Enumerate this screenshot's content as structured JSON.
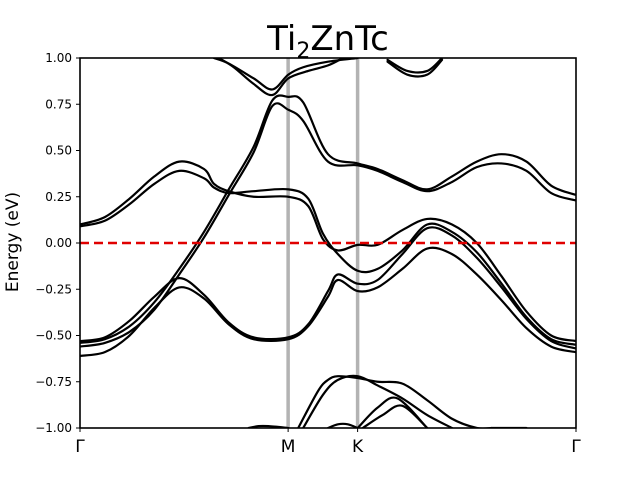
{
  "chart_data": {
    "type": "line",
    "title": {
      "main": "Ti",
      "sub": "2",
      "rest": "ZnTc"
    },
    "ylabel": "Energy (eV)",
    "xlabel": "",
    "ylim": [
      -1.0,
      1.0
    ],
    "y_ticks": [
      -1.0,
      -0.75,
      -0.5,
      -0.25,
      0.0,
      0.25,
      0.5,
      0.75,
      1.0
    ],
    "y_tick_labels": [
      "−1.00",
      "−0.75",
      "−0.50",
      "−0.25",
      "0.00",
      "0.25",
      "0.50",
      "0.75",
      "1.00"
    ],
    "xlim": [
      0,
      1
    ],
    "high_symmetry_points": [
      {
        "label": "Γ",
        "x": 0.0
      },
      {
        "label": "M",
        "x": 0.4196
      },
      {
        "label": "K",
        "x": 0.5597
      },
      {
        "label": "Γ",
        "x": 1.0
      }
    ],
    "vertical_line_color": "#b3b3b3",
    "band_color": "#000000",
    "fermi_level": {
      "y": 0.0,
      "color": "#e00000",
      "style": "dashed"
    },
    "grid": false,
    "legend": "none",
    "series": [
      {
        "x": [
          0,
          0.05,
          0.1,
          0.15,
          0.2,
          0.25,
          0.3,
          0.35,
          0.3877,
          0.42,
          0.45,
          0.5,
          0.5597,
          0.6,
          0.65,
          0.7,
          0.75,
          0.8,
          0.85,
          0.9,
          0.95,
          1.0
        ],
        "y": [
          -0.54,
          -0.52,
          -0.45,
          -0.32,
          -0.14,
          0.06,
          0.29,
          0.52,
          0.77,
          0.79,
          0.76,
          0.48,
          0.43,
          0.4,
          0.34,
          0.29,
          0.36,
          0.44,
          0.48,
          0.44,
          0.31,
          0.26
        ]
      },
      {
        "x": [
          0,
          0.05,
          0.1,
          0.15,
          0.2,
          0.25,
          0.3,
          0.35,
          0.3877,
          0.42,
          0.45,
          0.5,
          0.5597,
          0.6,
          0.65,
          0.7,
          0.75,
          0.8,
          0.85,
          0.9,
          0.95,
          1.0
        ],
        "y": [
          -0.56,
          -0.54,
          -0.48,
          -0.36,
          -0.17,
          0.03,
          0.26,
          0.49,
          0.74,
          0.72,
          0.66,
          0.44,
          0.42,
          0.39,
          0.33,
          0.28,
          0.33,
          0.41,
          0.43,
          0.39,
          0.27,
          0.23
        ]
      },
      {
        "x": [
          0,
          0.05,
          0.1,
          0.15,
          0.2,
          0.25,
          0.27,
          0.3,
          0.35,
          0.42,
          0.46,
          0.49,
          0.52,
          0.5597,
          0.6,
          0.65,
          0.7,
          0.75,
          0.8,
          0.85,
          0.9,
          0.95,
          1.0
        ],
        "y": [
          0.1,
          0.14,
          0.24,
          0.36,
          0.44,
          0.4,
          0.32,
          0.28,
          0.25,
          0.25,
          0.2,
          0.02,
          -0.04,
          -0.01,
          -0.01,
          0.07,
          0.13,
          0.1,
          0.0,
          -0.18,
          -0.37,
          -0.5,
          -0.53
        ]
      },
      {
        "x": [
          0,
          0.05,
          0.1,
          0.15,
          0.2,
          0.25,
          0.27,
          0.3,
          0.35,
          0.42,
          0.46,
          0.49,
          0.52,
          0.5597,
          0.6,
          0.65,
          0.7,
          0.75,
          0.8,
          0.85,
          0.9,
          0.95,
          1.0
        ],
        "y": [
          0.09,
          0.12,
          0.21,
          0.32,
          0.39,
          0.35,
          0.3,
          0.27,
          0.28,
          0.29,
          0.24,
          0.05,
          -0.06,
          -0.15,
          -0.14,
          -0.04,
          0.1,
          0.06,
          -0.05,
          -0.22,
          -0.4,
          -0.52,
          -0.55
        ]
      },
      {
        "x": [
          0,
          0.05,
          0.1,
          0.15,
          0.2,
          0.25,
          0.3,
          0.35,
          0.42,
          0.46,
          0.5,
          0.52,
          0.5597,
          0.6,
          0.65,
          0.7,
          0.75,
          0.8,
          0.85,
          0.9,
          0.95,
          1.0
        ],
        "y": [
          -0.53,
          -0.51,
          -0.42,
          -0.29,
          -0.19,
          -0.28,
          -0.43,
          -0.51,
          -0.51,
          -0.44,
          -0.26,
          -0.17,
          -0.22,
          -0.2,
          -0.06,
          0.08,
          0.04,
          -0.08,
          -0.24,
          -0.41,
          -0.53,
          -0.57
        ]
      },
      {
        "x": [
          0,
          0.05,
          0.1,
          0.15,
          0.2,
          0.25,
          0.3,
          0.35,
          0.42,
          0.46,
          0.5,
          0.52,
          0.5597,
          0.6,
          0.65,
          0.7,
          0.75,
          0.8,
          0.85,
          0.9,
          0.95,
          1.0
        ],
        "y": [
          -0.61,
          -0.59,
          -0.5,
          -0.35,
          -0.24,
          -0.3,
          -0.44,
          -0.52,
          -0.52,
          -0.45,
          -0.29,
          -0.2,
          -0.26,
          -0.24,
          -0.14,
          -0.03,
          -0.06,
          -0.17,
          -0.31,
          -0.46,
          -0.56,
          -0.59
        ]
      },
      {
        "x": [
          0.27,
          0.3,
          0.35,
          0.3877,
          0.42,
          0.45,
          0.5,
          0.5597
        ],
        "y": [
          1.0,
          0.97,
          0.89,
          0.83,
          0.91,
          0.95,
          0.98,
          1.0
        ]
      },
      {
        "x": [
          0.28,
          0.31,
          0.35,
          0.3877,
          0.42,
          0.46,
          0.5,
          0.53
        ],
        "y": [
          1.0,
          0.95,
          0.86,
          0.8,
          0.89,
          0.93,
          0.96,
          1.0
        ]
      },
      {
        "x": [
          0.62,
          0.66,
          0.7,
          0.73
        ],
        "y": [
          0.98,
          0.91,
          0.91,
          0.99
        ]
      },
      {
        "x": [
          0.62,
          0.66,
          0.7,
          0.73
        ],
        "y": [
          0.99,
          0.93,
          0.93,
          1.0
        ]
      },
      {
        "x": [
          0.44,
          0.48,
          0.5,
          0.52,
          0.5597,
          0.6,
          0.65,
          0.7,
          0.75,
          0.8,
          0.83
        ],
        "y": [
          -1.0,
          -0.8,
          -0.74,
          -0.72,
          -0.73,
          -0.75,
          -0.76,
          -0.85,
          -0.95,
          -1.0,
          -1.0
        ]
      },
      {
        "x": [
          0.45,
          0.49,
          0.52,
          0.5597,
          0.6,
          0.65,
          0.7,
          0.75
        ],
        "y": [
          -1.0,
          -0.82,
          -0.74,
          -0.72,
          -0.77,
          -0.84,
          -0.93,
          -1.0
        ]
      },
      {
        "x": [
          0.56,
          0.6,
          0.64,
          0.7
        ],
        "y": [
          -1.0,
          -0.89,
          -0.84,
          -1.0
        ]
      },
      {
        "x": [
          0.57,
          0.61,
          0.65,
          0.7
        ],
        "y": [
          -1.0,
          -0.93,
          -0.88,
          -1.0
        ]
      },
      {
        "x": [
          0.34,
          0.36,
          0.38,
          0.42
        ],
        "y": [
          -1.0,
          -0.99,
          -0.99,
          -1.0
        ]
      },
      {
        "x": [
          0.5,
          0.52,
          0.54,
          0.5597
        ],
        "y": [
          -1.0,
          -0.98,
          -0.98,
          -1.0
        ]
      },
      {
        "x": [
          0.83,
          0.9
        ],
        "y": [
          -1.0,
          -1.0
        ]
      }
    ]
  }
}
